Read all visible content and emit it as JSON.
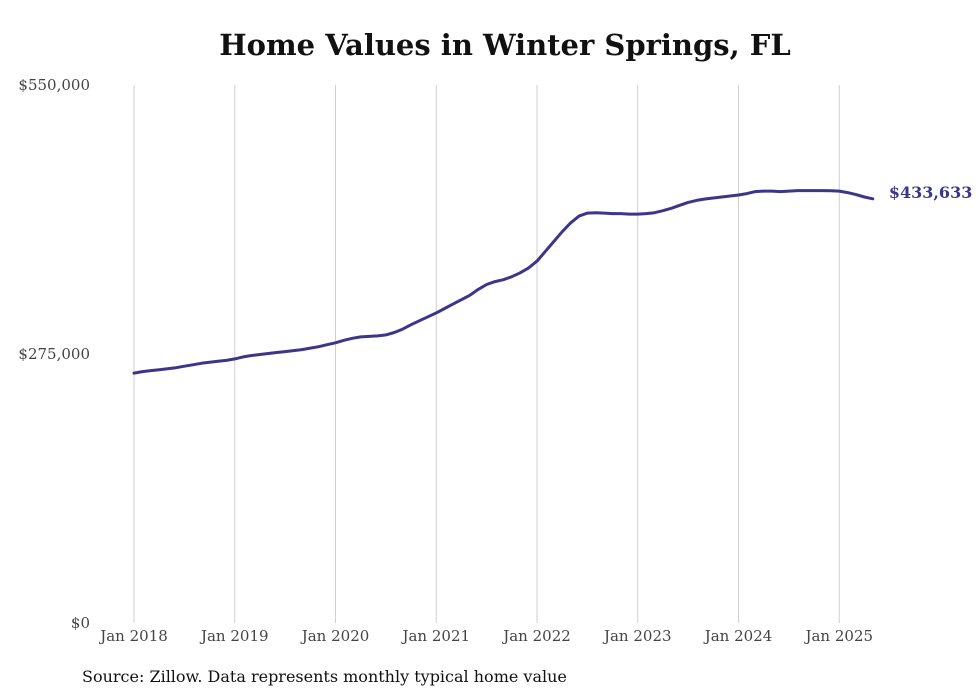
{
  "chart_data": {
    "type": "line",
    "title": "Home Values in Winter Springs, FL",
    "source": "Source: Zillow. Data represents monthly typical home value",
    "x_ticks": [
      "Jan 2018",
      "Jan 2019",
      "Jan 2020",
      "Jan 2021",
      "Jan 2022",
      "Jan 2023",
      "Jan 2024",
      "Jan 2025"
    ],
    "y_ticks": [
      {
        "value": 0,
        "label": "$0"
      },
      {
        "value": 275000,
        "label": "$275,000"
      },
      {
        "value": 550000,
        "label": "$550,000"
      }
    ],
    "ylim": [
      0,
      550000
    ],
    "xlim": [
      "2018-01",
      "2025-05"
    ],
    "grid": "vertical",
    "line_color": "#3b3689",
    "end_label": "$433,633",
    "series": [
      {
        "x": [
          "2018-01",
          "2018-02",
          "2018-03",
          "2018-04",
          "2018-05",
          "2018-06",
          "2018-07",
          "2018-08",
          "2018-09",
          "2018-10",
          "2018-11",
          "2018-12",
          "2019-01",
          "2019-02",
          "2019-03",
          "2019-04",
          "2019-05",
          "2019-06",
          "2019-07",
          "2019-08",
          "2019-09",
          "2019-10",
          "2019-11",
          "2019-12",
          "2020-01",
          "2020-02",
          "2020-03",
          "2020-04",
          "2020-05",
          "2020-06",
          "2020-07",
          "2020-08",
          "2020-09",
          "2020-10",
          "2020-11",
          "2020-12",
          "2021-01",
          "2021-02",
          "2021-03",
          "2021-04",
          "2021-05",
          "2021-06",
          "2021-07",
          "2021-08",
          "2021-09",
          "2021-10",
          "2021-11",
          "2021-12",
          "2022-01",
          "2022-02",
          "2022-03",
          "2022-04",
          "2022-05",
          "2022-06",
          "2022-07",
          "2022-08",
          "2022-09",
          "2022-10",
          "2022-11",
          "2022-12",
          "2023-01",
          "2023-02",
          "2023-03",
          "2023-04",
          "2023-05",
          "2023-06",
          "2023-07",
          "2023-08",
          "2023-09",
          "2023-10",
          "2023-11",
          "2023-12",
          "2024-01",
          "2024-02",
          "2024-03",
          "2024-04",
          "2024-05",
          "2024-06",
          "2024-07",
          "2024-08",
          "2024-09",
          "2024-10",
          "2024-11",
          "2024-12",
          "2025-01",
          "2025-02",
          "2025-03",
          "2025-04",
          "2025-05"
        ],
        "values": [
          255500,
          257000,
          258000,
          259000,
          260000,
          261000,
          262500,
          264000,
          265500,
          266500,
          267500,
          268500,
          270000,
          272000,
          273500,
          274500,
          275500,
          276500,
          277500,
          278500,
          279500,
          281000,
          282500,
          284500,
          286500,
          289000,
          291000,
          292500,
          293000,
          293500,
          294500,
          297000,
          300500,
          305000,
          309000,
          313000,
          317000,
          321500,
          326000,
          330500,
          335000,
          341000,
          346000,
          349000,
          351000,
          354000,
          358000,
          363000,
          370000,
          380000,
          390000,
          400000,
          409000,
          416000,
          419000,
          419500,
          419000,
          418500,
          418500,
          418000,
          418000,
          418500,
          419500,
          421500,
          424000,
          427000,
          430000,
          432000,
          433500,
          434500,
          435500,
          436500,
          437500,
          439000,
          441000,
          441500,
          441500,
          441000,
          441500,
          442000,
          442000,
          442000,
          442000,
          441800,
          441500,
          440000,
          438000,
          435500,
          433633
        ]
      }
    ]
  }
}
